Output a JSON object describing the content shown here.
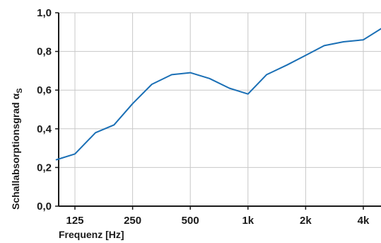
{
  "chart_data": {
    "type": "line",
    "title": "",
    "xlabel": "Frequenz [Hz]",
    "ylabel": "Schallabsorptionsgrad α",
    "ylabel_subscript": "S",
    "x_scale": "log",
    "x": [
      100,
      125,
      160,
      200,
      250,
      315,
      400,
      500,
      630,
      800,
      1000,
      1250,
      1600,
      2000,
      2500,
      3150,
      4000,
      5000
    ],
    "x_ticks": [
      125,
      250,
      500,
      1000,
      2000,
      4000
    ],
    "x_tick_labels": [
      "125",
      "250",
      "500",
      "1k",
      "2k",
      "4k"
    ],
    "y_ticks": [
      0.0,
      0.2,
      0.4,
      0.6,
      0.8,
      1.0
    ],
    "y_tick_labels": [
      "0,0",
      "0,2",
      "0,4",
      "0,6",
      "0,8",
      "1,0"
    ],
    "ylim": [
      0,
      1.0
    ],
    "grid": true,
    "series": [
      {
        "color": "#1a6fb5",
        "values": [
          0.24,
          0.27,
          0.38,
          0.42,
          0.53,
          0.63,
          0.68,
          0.69,
          0.66,
          0.61,
          0.58,
          0.68,
          0.73,
          0.78,
          0.83,
          0.85,
          0.86,
          0.92
        ]
      }
    ]
  }
}
